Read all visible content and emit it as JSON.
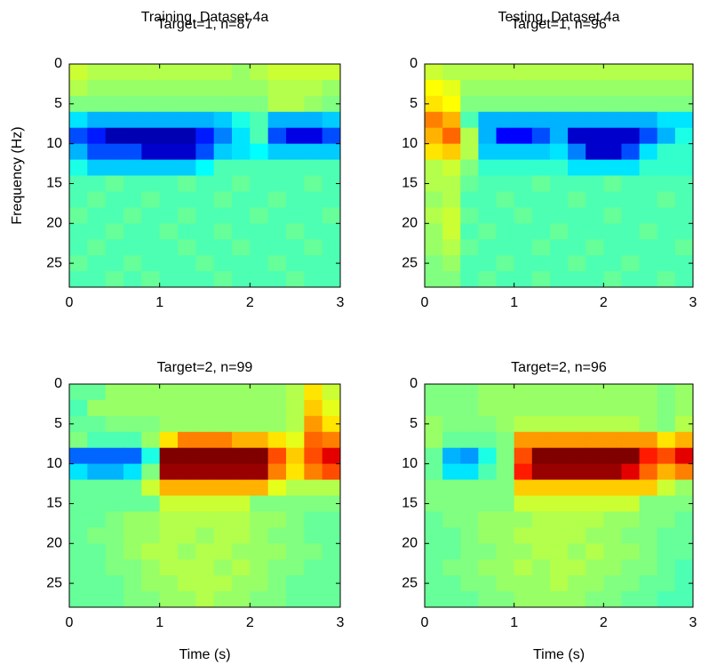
{
  "chart_data": [
    {
      "type": "heatmap",
      "title": "Training, Dataset 4a",
      "subtitle": "Target=1, n=87",
      "ylabel": "Frequency (Hz)",
      "x": [
        0.1,
        0.3,
        0.5,
        0.7,
        0.9,
        1.1,
        1.3,
        1.5,
        1.7,
        1.9,
        2.1,
        2.3,
        2.5,
        2.7,
        2.9
      ],
      "y": [
        1,
        3,
        5,
        7,
        9,
        11,
        13,
        15,
        17,
        19,
        21,
        23,
        25,
        27
      ],
      "xlim": [
        0,
        3
      ],
      "ylim": [
        0,
        28
      ],
      "y_reversed": true,
      "xticks": [
        0,
        1,
        2,
        3
      ],
      "yticks": [
        0,
        5,
        10,
        15,
        20,
        25
      ],
      "colormap": "jet",
      "clim": [
        -1,
        1
      ],
      "values": [
        [
          0.15,
          0.1,
          0.1,
          0.1,
          0.1,
          0.1,
          0.1,
          0.1,
          0.1,
          0.05,
          0.1,
          0.15,
          0.15,
          0.15,
          0.15
        ],
        [
          0.1,
          0.05,
          0.05,
          0.05,
          0.05,
          0.05,
          0.05,
          0.05,
          0.05,
          0.05,
          0.05,
          0.1,
          0.1,
          0.1,
          0.05
        ],
        [
          0,
          0,
          0,
          0,
          0,
          0,
          0,
          0,
          0,
          0,
          0,
          0.1,
          0.1,
          0.05,
          0
        ],
        [
          -0.3,
          -0.4,
          -0.4,
          -0.4,
          -0.4,
          -0.4,
          -0.4,
          -0.4,
          -0.35,
          -0.2,
          -0.1,
          -0.4,
          -0.4,
          -0.4,
          -0.35
        ],
        [
          -0.6,
          -0.7,
          -0.9,
          -0.9,
          -0.9,
          -0.9,
          -0.9,
          -0.7,
          -0.5,
          -0.3,
          -0.1,
          -0.6,
          -0.8,
          -0.8,
          -0.6
        ],
        [
          -0.4,
          -0.6,
          -0.6,
          -0.6,
          -0.85,
          -0.85,
          -0.85,
          -0.6,
          -0.35,
          -0.3,
          -0.25,
          -0.35,
          -0.35,
          -0.35,
          -0.35
        ],
        [
          -0.2,
          -0.35,
          -0.35,
          -0.35,
          -0.35,
          -0.35,
          -0.35,
          -0.25,
          -0.1,
          -0.1,
          -0.1,
          -0.1,
          -0.1,
          -0.1,
          -0.1
        ],
        [
          -0.1,
          -0.1,
          -0.05,
          -0.1,
          -0.1,
          -0.1,
          -0.05,
          -0.1,
          -0.1,
          -0.05,
          -0.1,
          -0.1,
          -0.1,
          -0.05,
          -0.1
        ],
        [
          -0.1,
          -0.05,
          -0.1,
          -0.1,
          -0.05,
          -0.1,
          -0.1,
          -0.1,
          -0.05,
          -0.1,
          -0.1,
          -0.05,
          -0.1,
          -0.1,
          -0.1
        ],
        [
          -0.05,
          -0.1,
          -0.1,
          -0.05,
          -0.1,
          -0.1,
          -0.05,
          -0.1,
          -0.1,
          -0.1,
          -0.05,
          -0.1,
          -0.1,
          -0.1,
          -0.05
        ],
        [
          -0.1,
          -0.1,
          -0.05,
          -0.1,
          -0.1,
          -0.05,
          -0.1,
          -0.1,
          -0.05,
          -0.1,
          -0.1,
          -0.1,
          -0.05,
          -0.1,
          -0.1
        ],
        [
          -0.1,
          -0.05,
          -0.1,
          -0.1,
          -0.1,
          -0.1,
          -0.05,
          -0.1,
          -0.1,
          -0.05,
          -0.1,
          -0.1,
          -0.1,
          -0.05,
          -0.1
        ],
        [
          -0.05,
          -0.1,
          -0.1,
          -0.05,
          -0.1,
          -0.1,
          -0.1,
          -0.05,
          -0.1,
          -0.1,
          -0.1,
          -0.05,
          -0.1,
          -0.1,
          -0.1
        ],
        [
          -0.1,
          -0.1,
          -0.05,
          -0.1,
          -0.05,
          -0.1,
          -0.1,
          -0.1,
          -0.05,
          -0.1,
          -0.1,
          -0.1,
          -0.05,
          -0.1,
          -0.1
        ]
      ]
    },
    {
      "type": "heatmap",
      "title": "Testing, Dataset 4a",
      "subtitle": "Target=1, n=96",
      "x": [
        0.1,
        0.3,
        0.5,
        0.7,
        0.9,
        1.1,
        1.3,
        1.5,
        1.7,
        1.9,
        2.1,
        2.3,
        2.5,
        2.7,
        2.9
      ],
      "y": [
        1,
        3,
        5,
        7,
        9,
        11,
        13,
        15,
        17,
        19,
        21,
        23,
        25,
        27
      ],
      "xlim": [
        0,
        3
      ],
      "ylim": [
        0,
        28
      ],
      "y_reversed": true,
      "xticks": [
        0,
        1,
        2,
        3
      ],
      "yticks": [
        0,
        5,
        10,
        15,
        20,
        25
      ],
      "colormap": "jet",
      "clim": [
        -1,
        1
      ],
      "values": [
        [
          0.15,
          0.1,
          0.1,
          0.1,
          0.1,
          0.1,
          0.1,
          0.1,
          0.1,
          0.1,
          0.1,
          0.1,
          0.1,
          0.1,
          0.1
        ],
        [
          0.25,
          0.2,
          0.05,
          0.05,
          0.05,
          0.05,
          0.05,
          0.05,
          0.05,
          0.05,
          0.05,
          0.05,
          0.05,
          0.05,
          0.05
        ],
        [
          0.3,
          0.25,
          0,
          0,
          0,
          0,
          0,
          0,
          0,
          0,
          0,
          0,
          0,
          0,
          0
        ],
        [
          0.5,
          0.4,
          -0.1,
          -0.4,
          -0.4,
          -0.4,
          -0.4,
          -0.4,
          -0.4,
          -0.4,
          -0.4,
          -0.4,
          -0.4,
          -0.3,
          -0.3
        ],
        [
          0.4,
          0.55,
          0.1,
          -0.4,
          -0.75,
          -0.75,
          -0.6,
          -0.4,
          -0.85,
          -0.85,
          -0.85,
          -0.85,
          -0.6,
          -0.4,
          -0.2
        ],
        [
          0.3,
          0.35,
          0.1,
          -0.35,
          -0.35,
          -0.35,
          -0.35,
          -0.3,
          -0.5,
          -0.85,
          -0.85,
          -0.6,
          -0.3,
          -0.15,
          -0.15
        ],
        [
          0.1,
          0.15,
          0,
          -0.15,
          -0.15,
          -0.15,
          -0.15,
          -0.15,
          -0.3,
          -0.3,
          -0.3,
          -0.3,
          -0.15,
          -0.15,
          -0.15
        ],
        [
          0.1,
          0.1,
          -0.05,
          -0.1,
          -0.1,
          -0.1,
          -0.05,
          -0.1,
          -0.1,
          -0.1,
          -0.05,
          -0.1,
          -0.1,
          -0.1,
          -0.1
        ],
        [
          0.05,
          0.1,
          -0.1,
          -0.1,
          -0.05,
          -0.1,
          -0.1,
          -0.1,
          -0.05,
          -0.1,
          -0.1,
          -0.1,
          -0.1,
          -0.05,
          -0.1
        ],
        [
          0.1,
          0.15,
          -0.05,
          -0.1,
          -0.1,
          -0.05,
          -0.1,
          -0.1,
          -0.1,
          -0.1,
          -0.05,
          -0.1,
          -0.1,
          -0.1,
          -0.1
        ],
        [
          0.05,
          0.15,
          -0.1,
          -0.05,
          -0.1,
          -0.1,
          -0.1,
          -0.05,
          -0.1,
          -0.1,
          -0.1,
          -0.1,
          -0.05,
          -0.1,
          -0.1
        ],
        [
          0.05,
          0.1,
          -0.05,
          -0.1,
          -0.1,
          -0.1,
          -0.05,
          -0.1,
          -0.1,
          -0.05,
          -0.1,
          -0.1,
          -0.1,
          -0.1,
          -0.05
        ],
        [
          0,
          0.05,
          -0.1,
          -0.1,
          -0.05,
          -0.1,
          -0.1,
          -0.1,
          -0.05,
          -0.1,
          -0.1,
          -0.05,
          -0.1,
          -0.1,
          -0.1
        ],
        [
          0,
          0,
          -0.1,
          -0.05,
          -0.1,
          -0.1,
          -0.05,
          -0.1,
          -0.1,
          -0.1,
          -0.05,
          -0.1,
          -0.1,
          -0.05,
          -0.1
        ]
      ]
    },
    {
      "type": "heatmap",
      "title": "Target=2, n=99",
      "xlabel": "Time (s)",
      "x": [
        0.1,
        0.3,
        0.5,
        0.7,
        0.9,
        1.1,
        1.3,
        1.5,
        1.7,
        1.9,
        2.1,
        2.3,
        2.5,
        2.7,
        2.9
      ],
      "y": [
        1,
        3,
        5,
        7,
        9,
        11,
        13,
        15,
        17,
        19,
        21,
        23,
        25,
        27
      ],
      "xlim": [
        0,
        3
      ],
      "ylim": [
        0,
        28
      ],
      "y_reversed": true,
      "xticks": [
        0,
        1,
        2,
        3
      ],
      "yticks": [
        0,
        5,
        10,
        15,
        20,
        25
      ],
      "colormap": "jet",
      "clim": [
        -1,
        1
      ],
      "values": [
        [
          -0.05,
          -0.05,
          0.05,
          0.05,
          0.05,
          0.05,
          0.05,
          0.05,
          0.05,
          0.05,
          0.05,
          0.05,
          0.1,
          0.3,
          0.15
        ],
        [
          -0.1,
          0.05,
          0.05,
          0.05,
          0.05,
          0.05,
          0.05,
          0.05,
          0.05,
          0.05,
          0.05,
          0.05,
          0.1,
          0.35,
          0.2
        ],
        [
          -0.05,
          -0.05,
          0,
          0,
          0,
          0.05,
          0.05,
          0.05,
          0.05,
          0.05,
          0.05,
          0.05,
          0.1,
          0.45,
          0.3
        ],
        [
          0,
          -0.1,
          -0.1,
          -0.1,
          0.05,
          0.3,
          0.5,
          0.5,
          0.5,
          0.4,
          0.4,
          0.3,
          0.2,
          0.55,
          0.5
        ],
        [
          -0.55,
          -0.55,
          -0.55,
          -0.55,
          -0.2,
          1,
          1,
          1,
          1,
          1,
          1,
          0.6,
          0.35,
          0.6,
          0.8
        ],
        [
          -0.3,
          -0.4,
          -0.4,
          -0.3,
          0,
          0.95,
          0.95,
          0.95,
          0.95,
          0.95,
          0.95,
          0.5,
          0.3,
          0.5,
          0.6
        ],
        [
          -0.05,
          -0.05,
          -0.05,
          -0.05,
          0.15,
          0.4,
          0.4,
          0.4,
          0.4,
          0.4,
          0.4,
          0.2,
          0.1,
          0.1,
          0.1
        ],
        [
          -0.05,
          -0.05,
          -0.05,
          -0.05,
          -0.05,
          0.15,
          0.15,
          0.15,
          0.15,
          0.15,
          0,
          0,
          0,
          0,
          0
        ],
        [
          -0.05,
          -0.05,
          0,
          0.05,
          0.05,
          0.1,
          0.1,
          0.1,
          0.1,
          0.1,
          0.05,
          0.05,
          0,
          -0.05,
          -0.05
        ],
        [
          -0.05,
          0,
          0,
          0.05,
          0.05,
          0.1,
          0.1,
          0.05,
          0.1,
          0.1,
          0.05,
          0,
          0,
          -0.05,
          -0.05
        ],
        [
          -0.05,
          -0.05,
          0,
          0.05,
          0.1,
          0.1,
          0.05,
          0.1,
          0.1,
          0.05,
          0.05,
          0.05,
          0,
          0,
          -0.05
        ],
        [
          -0.05,
          -0.05,
          0,
          0,
          0.05,
          0.1,
          0.1,
          0.1,
          0.05,
          0.1,
          0.05,
          0,
          0,
          -0.05,
          -0.05
        ],
        [
          -0.05,
          -0.05,
          -0.05,
          0,
          0.05,
          0.05,
          0.1,
          0.1,
          0.1,
          0.05,
          0.05,
          0,
          -0.05,
          -0.05,
          -0.05
        ],
        [
          -0.05,
          -0.05,
          -0.05,
          0,
          0,
          0.05,
          0.05,
          0.1,
          0.05,
          0.05,
          0,
          0,
          -0.05,
          -0.05,
          -0.05
        ]
      ]
    },
    {
      "type": "heatmap",
      "title": "Target=2, n=96",
      "xlabel": "Time (s)",
      "x": [
        0.1,
        0.3,
        0.5,
        0.7,
        0.9,
        1.1,
        1.3,
        1.5,
        1.7,
        1.9,
        2.1,
        2.3,
        2.5,
        2.7,
        2.9
      ],
      "y": [
        1,
        3,
        5,
        7,
        9,
        11,
        13,
        15,
        17,
        19,
        21,
        23,
        25,
        27
      ],
      "xlim": [
        0,
        3
      ],
      "ylim": [
        0,
        28
      ],
      "y_reversed": true,
      "xticks": [
        0,
        1,
        2,
        3
      ],
      "yticks": [
        0,
        5,
        10,
        15,
        20,
        25
      ],
      "colormap": "jet",
      "clim": [
        -1,
        1
      ],
      "values": [
        [
          0,
          0,
          0,
          0.05,
          0.05,
          0.05,
          0.05,
          0.05,
          0.05,
          0.05,
          0.05,
          0.05,
          0.05,
          0,
          0.05
        ],
        [
          0,
          0,
          0,
          0.05,
          0.05,
          0.05,
          0.05,
          0.05,
          0.05,
          0.05,
          0.05,
          0.05,
          0.05,
          0,
          0.05
        ],
        [
          0.05,
          0,
          0,
          0,
          0.05,
          0.1,
          0.1,
          0.1,
          0.1,
          0.1,
          0.1,
          0.1,
          0.05,
          0,
          0.1
        ],
        [
          0.05,
          -0.05,
          -0.05,
          -0.05,
          0,
          0.45,
          0.45,
          0.45,
          0.45,
          0.45,
          0.45,
          0.45,
          0.45,
          0.3,
          0.4
        ],
        [
          -0.05,
          -0.4,
          -0.45,
          -0.2,
          0,
          0.6,
          1,
          1,
          1,
          1,
          1,
          1,
          0.7,
          0.6,
          0.8
        ],
        [
          -0.05,
          -0.3,
          -0.3,
          -0.1,
          0,
          0.7,
          0.95,
          0.95,
          0.95,
          0.95,
          0.95,
          0.8,
          0.55,
          0.4,
          0.5
        ],
        [
          0,
          0,
          0,
          0,
          0,
          0.35,
          0.35,
          0.35,
          0.35,
          0.35,
          0.35,
          0.35,
          0.35,
          0.15,
          0.05
        ],
        [
          0,
          0,
          0,
          0,
          0,
          0.15,
          0.15,
          0.15,
          0.15,
          0.15,
          0.15,
          0.15,
          0,
          0,
          0
        ],
        [
          -0.05,
          0,
          0,
          0.05,
          0.05,
          0.05,
          0.1,
          0.1,
          0.1,
          0.1,
          0.05,
          0.05,
          0,
          0,
          -0.05
        ],
        [
          -0.05,
          -0.05,
          0,
          0.05,
          0.05,
          0.1,
          0.1,
          0.1,
          0.1,
          0.05,
          0.05,
          0,
          0,
          -0.05,
          -0.05
        ],
        [
          -0.05,
          -0.05,
          0,
          0,
          0.05,
          0.05,
          0.1,
          0.1,
          0.05,
          0.1,
          0.05,
          0.05,
          0,
          -0.05,
          -0.05
        ],
        [
          -0.05,
          0,
          0,
          0.05,
          0.05,
          0.1,
          0.05,
          0.1,
          0.1,
          0.05,
          0.05,
          0,
          0,
          -0.05,
          -0.1
        ],
        [
          -0.05,
          -0.05,
          0,
          0,
          0.05,
          0.05,
          0.05,
          0.1,
          0.05,
          0.05,
          0,
          0,
          -0.05,
          -0.05,
          -0.1
        ],
        [
          -0.05,
          -0.05,
          -0.05,
          0,
          0,
          0.05,
          0.05,
          0.05,
          0.05,
          0,
          0,
          -0.05,
          -0.05,
          -0.1,
          -0.1
        ]
      ]
    }
  ]
}
